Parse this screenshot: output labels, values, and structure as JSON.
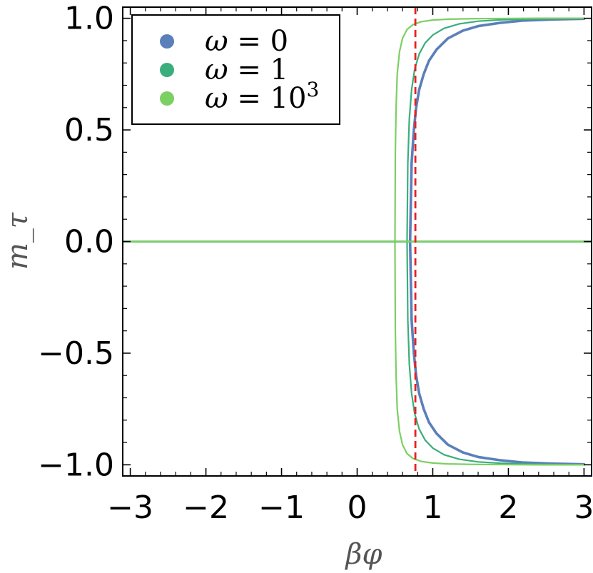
{
  "chart_data": {
    "type": "line",
    "xlabel": "βφ",
    "ylabel": "m_τ",
    "xlim": [
      -3.1,
      3.1
    ],
    "ylim": [
      -1.05,
      1.05
    ],
    "x_ticks": [
      -3,
      -2,
      -1,
      0,
      1,
      2,
      3
    ],
    "x_tick_labels": [
      "−3",
      "−2",
      "−1",
      "0",
      "1",
      "2",
      "3"
    ],
    "y_ticks": [
      1.0,
      0.5,
      0.0,
      -0.5,
      -1.0
    ],
    "y_tick_labels": [
      "1.0",
      "0.5",
      "0.0",
      "−0.5",
      "−1.0"
    ],
    "legend_position": "top-left",
    "grid": false,
    "reference_lines": [
      {
        "orientation": "vertical",
        "x": 0.77,
        "color": "#e8201f",
        "style": "dashed"
      }
    ],
    "series": [
      {
        "name": "ω = 0",
        "legend_label": {
          "var": "ω",
          "rel": " = ",
          "value": "0",
          "sup": ""
        },
        "color": "#5b7fba",
        "trivial_branch": {
          "x": [
            -3.1,
            3.1
          ],
          "y": [
            0,
            0
          ]
        },
        "onset_x": 0.7,
        "upper_branch": {
          "x": [
            0.7,
            0.72,
            0.75,
            0.78,
            0.82,
            0.88,
            0.95,
            1.05,
            1.2,
            1.4,
            1.6,
            1.9,
            2.2,
            2.6,
            3.0
          ],
          "y": [
            0.0,
            0.35,
            0.5,
            0.6,
            0.68,
            0.75,
            0.81,
            0.86,
            0.91,
            0.945,
            0.965,
            0.98,
            0.99,
            0.995,
            0.998
          ]
        }
      },
      {
        "name": "ω = 1",
        "legend_label": {
          "var": "ω",
          "rel": " = ",
          "value": "1",
          "sup": ""
        },
        "color": "#3aae7c",
        "trivial_branch": {
          "x": [
            -3.1,
            3.1
          ],
          "y": [
            0,
            0
          ]
        },
        "onset_x": 0.66,
        "upper_branch": {
          "x": [
            0.66,
            0.67,
            0.69,
            0.72,
            0.76,
            0.82,
            0.9,
            1.0,
            1.15,
            1.35,
            1.6,
            1.9,
            2.3,
            2.7,
            3.0
          ],
          "y": [
            0.0,
            0.35,
            0.55,
            0.68,
            0.77,
            0.84,
            0.89,
            0.925,
            0.955,
            0.975,
            0.987,
            0.993,
            0.997,
            0.999,
            1.0
          ]
        }
      },
      {
        "name": "ω = 10^3",
        "legend_label": {
          "var": "ω",
          "rel": " = ",
          "value": "10",
          "sup": "3"
        },
        "color": "#7ccf63",
        "trivial_branch": {
          "x": [
            -3.1,
            3.1
          ],
          "y": [
            0,
            0
          ]
        },
        "onset_x": 0.5,
        "upper_branch": {
          "x": [
            0.5,
            0.505,
            0.515,
            0.53,
            0.56,
            0.6,
            0.66,
            0.74,
            0.85,
            1.0,
            1.2,
            1.5,
            1.9,
            2.4,
            3.0
          ],
          "y": [
            0.0,
            0.4,
            0.6,
            0.75,
            0.85,
            0.91,
            0.95,
            0.972,
            0.985,
            0.992,
            0.996,
            0.998,
            0.999,
            1.0,
            1.0
          ]
        }
      }
    ]
  }
}
